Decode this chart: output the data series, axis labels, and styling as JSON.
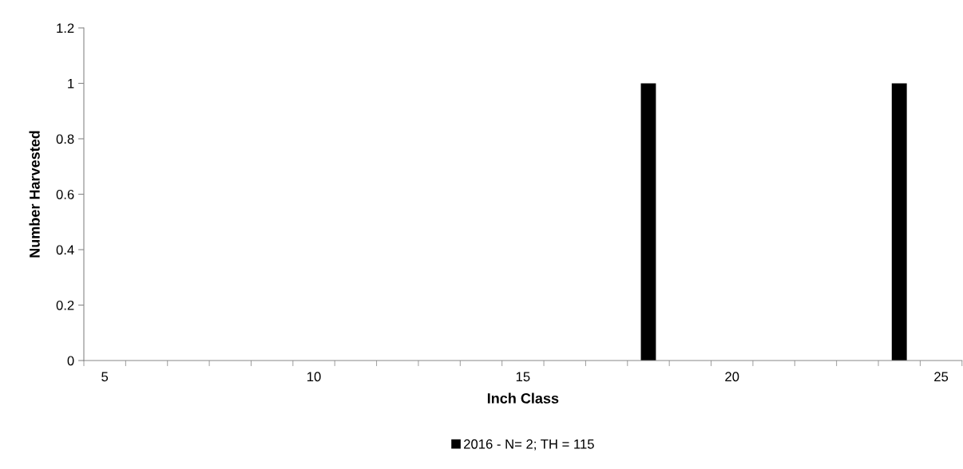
{
  "chart_data": {
    "type": "bar",
    "xlabel": "Inch Class",
    "ylabel": "Number Harvested",
    "categories": [
      "5",
      null,
      null,
      null,
      null,
      "10",
      null,
      null,
      null,
      null,
      "15",
      null,
      null,
      null,
      null,
      "20",
      null,
      null,
      null,
      null,
      "25"
    ],
    "series": [
      {
        "name": "2016 - N= 2; TH = 115",
        "color": "#000000",
        "values": [
          0,
          0,
          0,
          0,
          0,
          0,
          0,
          0,
          0,
          0,
          0,
          0,
          0,
          1,
          0,
          0,
          0,
          0,
          0,
          1,
          0
        ]
      }
    ],
    "ylim": [
      0,
      1.2
    ],
    "yticks": [
      0,
      0.2,
      0.4,
      0.6,
      0.8,
      1,
      1.2
    ],
    "grid": false,
    "legend": "bottom"
  }
}
